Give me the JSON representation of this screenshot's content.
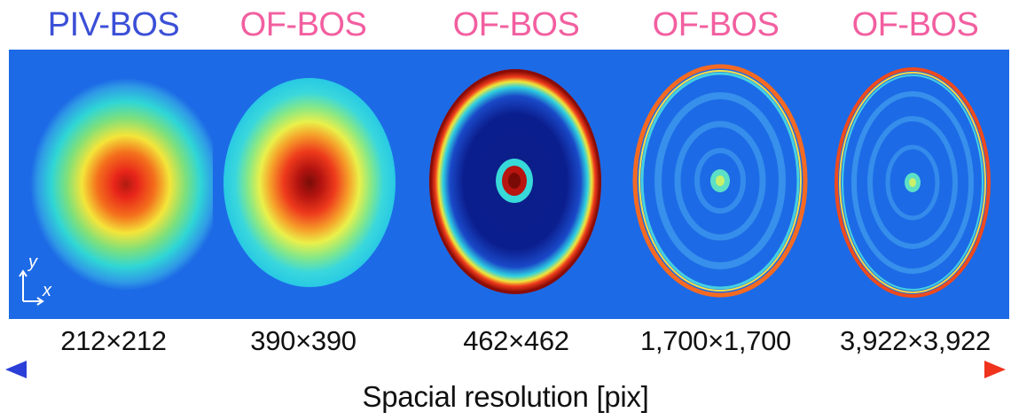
{
  "methods": [
    {
      "title": "PIV-BOS",
      "color": "#3b4fd6",
      "resolution": "212×212",
      "style": "smooth",
      "colormap": "jet"
    },
    {
      "title": "OF-BOS",
      "color": "#f25fa0",
      "resolution": "390×390",
      "style": "smooth-dark-core",
      "colormap": "jet"
    },
    {
      "title": "OF-BOS",
      "color": "#f25fa0",
      "resolution": "462×462",
      "style": "dark-disk-bright-rim",
      "colormap": "jet"
    },
    {
      "title": "OF-BOS",
      "color": "#f25fa0",
      "resolution": "1,700×1,700",
      "style": "thin-rings",
      "colormap": "jet"
    },
    {
      "title": "OF-BOS",
      "color": "#f25fa0",
      "resolution": "3,922×3,922",
      "style": "thin-rings",
      "colormap": "jet"
    }
  ],
  "coordinate_axes": {
    "y_label": "y",
    "x_label": "x"
  },
  "axis": {
    "title": "Spacial resolution [pix]",
    "gradient_start": "#2b3fd8",
    "gradient_end": "#f0331c"
  },
  "colors": {
    "background_field": "#1d6ae6"
  }
}
